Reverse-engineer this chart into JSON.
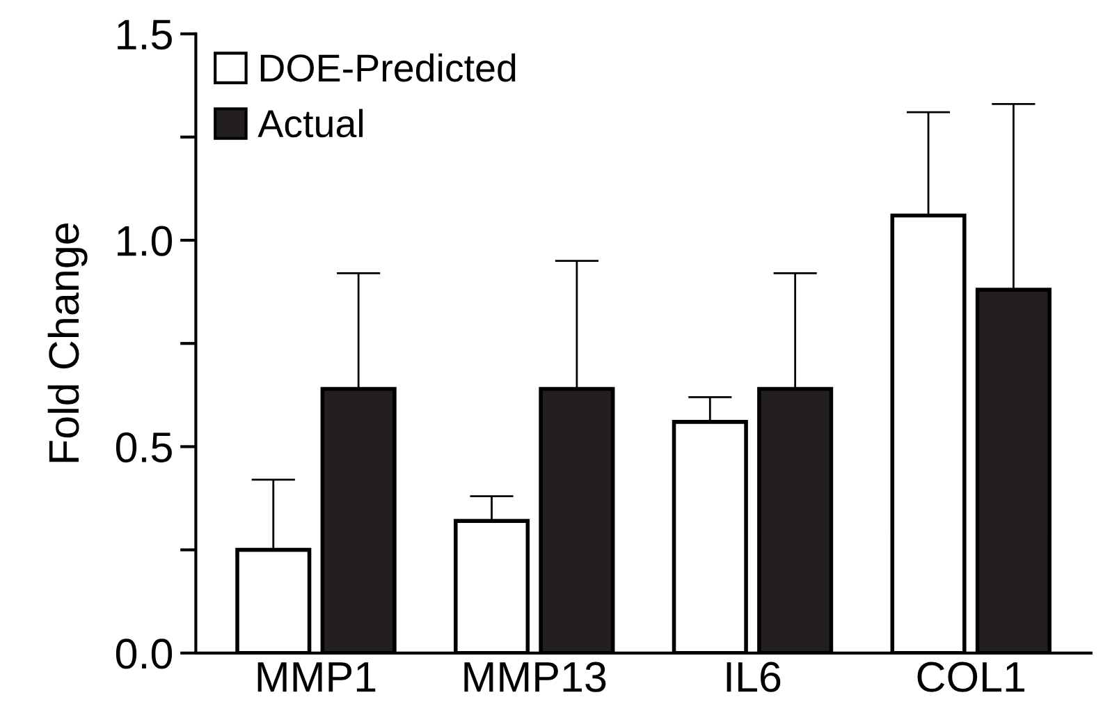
{
  "chart_data": {
    "type": "bar",
    "ylabel": "Fold Change",
    "categories": [
      "MMP1",
      "MMP13",
      "IL6",
      "COL1"
    ],
    "series": [
      {
        "name": "DOE-Predicted",
        "color": "#ffffff",
        "values": [
          0.25,
          0.32,
          0.56,
          1.06
        ],
        "errors": [
          [
            0.25,
            0.42
          ],
          [
            0.32,
            0.38
          ],
          [
            0.56,
            0.62
          ],
          [
            1.06,
            1.31
          ]
        ]
      },
      {
        "name": "Actual",
        "color": "#231f20",
        "values": [
          0.64,
          0.64,
          0.64,
          0.88
        ],
        "errors": [
          [
            0.64,
            0.92
          ],
          [
            0.64,
            0.95
          ],
          [
            0.64,
            0.92
          ],
          [
            0.88,
            1.33
          ]
        ]
      }
    ],
    "ylim": [
      0,
      1.5
    ],
    "yticks": [
      {
        "value": 0,
        "label": "0.0"
      },
      {
        "value": 0.25,
        "label": null
      },
      {
        "value": 0.5,
        "label": "0.5"
      },
      {
        "value": 0.75,
        "label": null
      },
      {
        "value": 1.0,
        "label": "1.0"
      },
      {
        "value": 1.25,
        "label": null
      },
      {
        "value": 1.5,
        "label": "1.5"
      }
    ],
    "legend": "top left",
    "grid": false
  }
}
